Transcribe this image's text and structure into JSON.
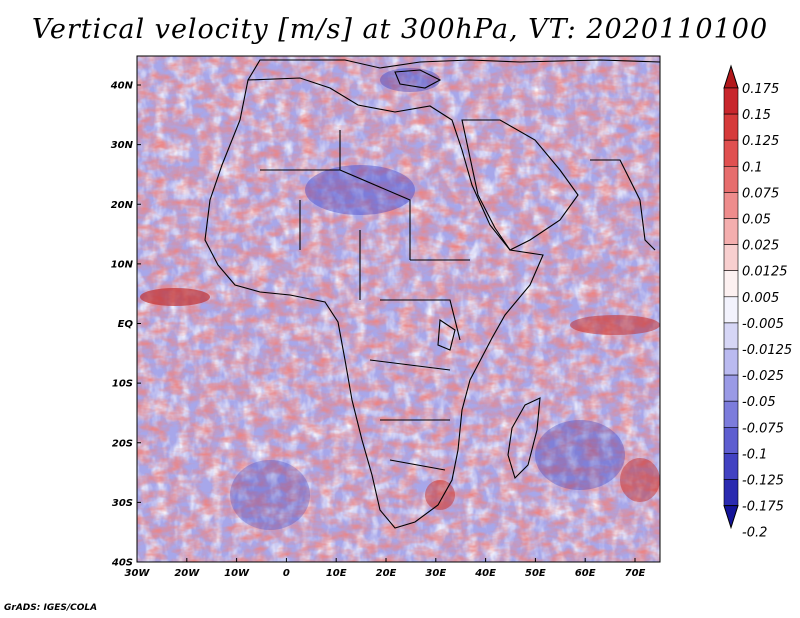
{
  "title": "Vertical velocity [m/s] at 300hPa, VT: 2020110100",
  "footer": "GrADS: IGES/COLA",
  "map": {
    "lat_labels": [
      "40N",
      "30N",
      "20N",
      "10N",
      "EQ",
      "10S",
      "20S",
      "30S",
      "40S"
    ],
    "lon_labels": [
      "30W",
      "20W",
      "10W",
      "0",
      "10E",
      "20E",
      "30E",
      "40E",
      "50E",
      "60E",
      "70E"
    ],
    "lat_range": [
      -40,
      45
    ],
    "lon_range": [
      -30,
      75
    ]
  },
  "colorbar": {
    "labels": [
      "0.175",
      "0.15",
      "0.125",
      "0.1",
      "0.075",
      "0.05",
      "0.025",
      "0.0125",
      "0.005",
      "-0.005",
      "-0.0125",
      "-0.025",
      "-0.05",
      "-0.075",
      "-0.1",
      "-0.125",
      "-0.175",
      "-0.2"
    ],
    "colors": [
      "#b2181b",
      "#c8262c",
      "#d63a3a",
      "#e05050",
      "#e76d6d",
      "#ee8c8c",
      "#f4aeae",
      "#f8cfcf",
      "#fdf1f1",
      "#f3f3fd",
      "#d6d6f6",
      "#babaf0",
      "#9a9ae6",
      "#7c7cdc",
      "#5e5ed0",
      "#4242c2",
      "#2a2ab0",
      "#14149a"
    ]
  }
}
